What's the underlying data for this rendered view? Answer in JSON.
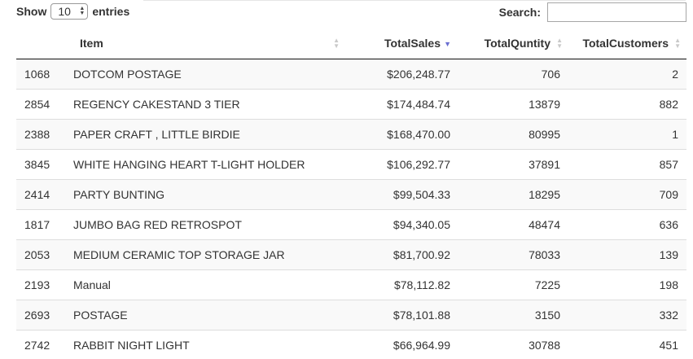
{
  "controls": {
    "show_label": "Show",
    "entries_value": "10",
    "entries_label": "entries",
    "search_label": "Search:",
    "search_value": ""
  },
  "table": {
    "headers": [
      "",
      "Item",
      "TotalSales",
      "TotalQuntity",
      "TotalCustomers"
    ],
    "sorted_column": "TotalSales",
    "sort_direction": "descending",
    "rows": [
      [
        "1068",
        "DOTCOM POSTAGE",
        "$206,248.77",
        "706",
        "2"
      ],
      [
        "2854",
        "REGENCY CAKESTAND 3 TIER",
        "$174,484.74",
        "13879",
        "882"
      ],
      [
        "2388",
        "PAPER CRAFT , LITTLE BIRDIE",
        "$168,470.00",
        "80995",
        "1"
      ],
      [
        "3845",
        "WHITE HANGING HEART T-LIGHT HOLDER",
        "$106,292.77",
        "37891",
        "857"
      ],
      [
        "2414",
        "PARTY BUNTING",
        "$99,504.33",
        "18295",
        "709"
      ],
      [
        "1817",
        "JUMBO BAG RED RETROSPOT",
        "$94,340.05",
        "48474",
        "636"
      ],
      [
        "2053",
        "MEDIUM CERAMIC TOP STORAGE JAR",
        "$81,700.92",
        "78033",
        "139"
      ],
      [
        "2193",
        "Manual",
        "$78,112.82",
        "7225",
        "198"
      ],
      [
        "2693",
        "POSTAGE",
        "$78,101.88",
        "3150",
        "332"
      ],
      [
        "2742",
        "RABBIT NIGHT LIGHT",
        "$66,964.99",
        "30788",
        "451"
      ]
    ]
  },
  "colors": {
    "active_sort_arrow": "#6b6fd1",
    "inactive_sort_arrow": "#c9c9c9",
    "stripe": "#f9f9f9",
    "header_border": "#111111"
  }
}
